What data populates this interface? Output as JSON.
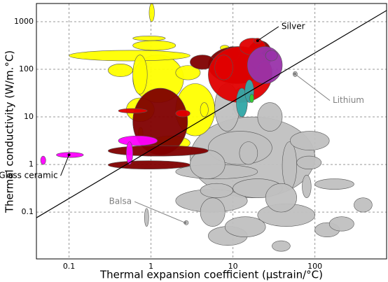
{
  "chart_data": {
    "type": "bubble-range",
    "x_label": "Thermal expansion coefficient (µstrain/°C)",
    "y_label": "Thermal conductivity (W/m.°C)",
    "log_x": true,
    "log_y": true,
    "grid": true,
    "xlim": [
      0.04,
      750
    ],
    "ylim": [
      0.0104,
      2410
    ],
    "xticks": [
      0.1,
      1,
      10,
      100
    ],
    "yticks": [
      0.1,
      1,
      10,
      100,
      1000
    ],
    "series": [
      {
        "color": "#c0c0c0",
        "x_range": [
          [
            3,
            100
          ],
          [
            2,
            15
          ],
          [
            4,
            8
          ],
          [
            5,
            15
          ],
          [
            20,
            100
          ],
          [
            40,
            60
          ],
          [
            10,
            15
          ],
          [
            0.85,
            0.92
          ],
          [
            5,
            30
          ],
          [
            100,
            200
          ],
          [
            100,
            300
          ],
          [
            50,
            150
          ],
          [
            20,
            40
          ],
          [
            6,
            12
          ],
          [
            30,
            50
          ],
          [
            55,
            60
          ],
          [
            2,
            20
          ],
          [
            300,
            500
          ],
          [
            10,
            40
          ],
          [
            3,
            8
          ],
          [
            8,
            25
          ],
          [
            60,
            120
          ],
          [
            150,
            300
          ],
          [
            25,
            60
          ],
          [
            12,
            20
          ],
          [
            4,
            10
          ],
          [
            70,
            90
          ],
          [
            2.6,
            2.8
          ]
        ],
        "y_range": [
          [
            0.2,
            10
          ],
          [
            0.1,
            0.3
          ],
          [
            0.05,
            0.2
          ],
          [
            0.02,
            0.05
          ],
          [
            0.05,
            0.15
          ],
          [
            0.3,
            3
          ],
          [
            10,
            40
          ],
          [
            0.05,
            0.12
          ],
          [
            1,
            5
          ],
          [
            0.03,
            0.06
          ],
          [
            0.3,
            0.5
          ],
          [
            2,
            5
          ],
          [
            5,
            20
          ],
          [
            5,
            50
          ],
          [
            0.015,
            0.025
          ],
          [
            70,
            90
          ],
          [
            0.5,
            1
          ],
          [
            0.1,
            0.2
          ],
          [
            0.2,
            0.5
          ],
          [
            0.5,
            2
          ],
          [
            0.03,
            0.08
          ],
          [
            0.8,
            1.5
          ],
          [
            0.04,
            0.08
          ],
          [
            0.1,
            0.4
          ],
          [
            1,
            3
          ],
          [
            0.2,
            0.4
          ],
          [
            0.2,
            0.6
          ],
          [
            0.055,
            0.065
          ]
        ]
      },
      {
        "color": "#ffff00",
        "x_range": [
          [
            0.6,
            2.5
          ],
          [
            0.1,
            3
          ],
          [
            2,
            6
          ],
          [
            0.95,
            1.1
          ],
          [
            0.6,
            0.9
          ],
          [
            0.5,
            1.1
          ],
          [
            0.7,
            0.8
          ],
          [
            0.3,
            0.6
          ],
          [
            0.6,
            1.5
          ],
          [
            1,
            3
          ],
          [
            4,
            5
          ],
          [
            7,
            9
          ],
          [
            0.6,
            2
          ],
          [
            2,
            4
          ]
        ],
        "y_range": [
          [
            20,
            200
          ],
          [
            150,
            250
          ],
          [
            4,
            50
          ],
          [
            1000,
            2400
          ],
          [
            30,
            200
          ],
          [
            8,
            25
          ],
          [
            3.5,
            6
          ],
          [
            70,
            130
          ],
          [
            400,
            500
          ],
          [
            2,
            4
          ],
          [
            10,
            20
          ],
          [
            250,
            320
          ],
          [
            250,
            400
          ],
          [
            60,
            120
          ]
        ]
      },
      {
        "color": "#800000",
        "x_range": [
          [
            0.6,
            2.8
          ],
          [
            0.3,
            5
          ],
          [
            0.3,
            3
          ],
          [
            5,
            25
          ],
          [
            3,
            6
          ],
          [
            15,
            30
          ],
          [
            8,
            12
          ]
        ],
        "y_range": [
          [
            1.6,
            40
          ],
          [
            1.5,
            2.5
          ],
          [
            0.8,
            1.2
          ],
          [
            50,
            300
          ],
          [
            100,
            200
          ],
          [
            100,
            400
          ],
          [
            150,
            300
          ]
        ]
      },
      {
        "color": "#e00000",
        "x_range": [
          [
            5,
            30
          ],
          [
            0.4,
            0.9
          ],
          [
            12,
            25
          ],
          [
            20,
            30
          ],
          [
            6,
            10
          ],
          [
            2,
            3
          ],
          [
            18,
            22
          ]
        ],
        "y_range": [
          [
            20,
            300
          ],
          [
            12,
            15
          ],
          [
            200,
            450
          ],
          [
            50,
            150
          ],
          [
            60,
            200
          ],
          [
            10,
            14
          ],
          [
            350,
            450
          ]
        ]
      },
      {
        "color": "#9933aa",
        "x_range": [
          [
            15,
            40
          ],
          [
            25,
            35
          ]
        ],
        "y_range": [
          [
            50,
            300
          ],
          [
            150,
            250
          ]
        ]
      },
      {
        "color": "#33aaaa",
        "x_range": [
          [
            11,
            15
          ],
          [
            14,
            18
          ]
        ],
        "y_range": [
          [
            10,
            40
          ],
          [
            20,
            60
          ]
        ]
      },
      {
        "color": "#ff00ff",
        "x_range": [
          [
            0.045,
            0.052
          ],
          [
            0.07,
            0.15
          ],
          [
            0.4,
            1.2
          ],
          [
            0.5,
            0.6
          ]
        ],
        "y_range": [
          [
            1,
            1.5
          ],
          [
            1.4,
            1.8
          ],
          [
            2.5,
            4
          ],
          [
            1,
            3
          ]
        ]
      },
      {
        "color": "#33cc33",
        "x_range": [
          [
            16,
            18
          ]
        ],
        "y_range": [
          [
            20,
            30
          ]
        ]
      }
    ],
    "guide_line": {
      "x": [
        0.04,
        750
      ],
      "y": [
        0.076,
        1720
      ]
    },
    "annotations": [
      {
        "text": "Silver",
        "color": "#000000",
        "x": 20,
        "y": 400
      },
      {
        "text": "Lithium",
        "color": "#808080",
        "x": 57,
        "y": 80
      },
      {
        "text": "Glass ceramic",
        "color": "#000000",
        "x": 0.1,
        "y": 1.6
      },
      {
        "text": "Balsa",
        "color": "#808080",
        "x": 2.6,
        "y": 0.06
      }
    ]
  }
}
